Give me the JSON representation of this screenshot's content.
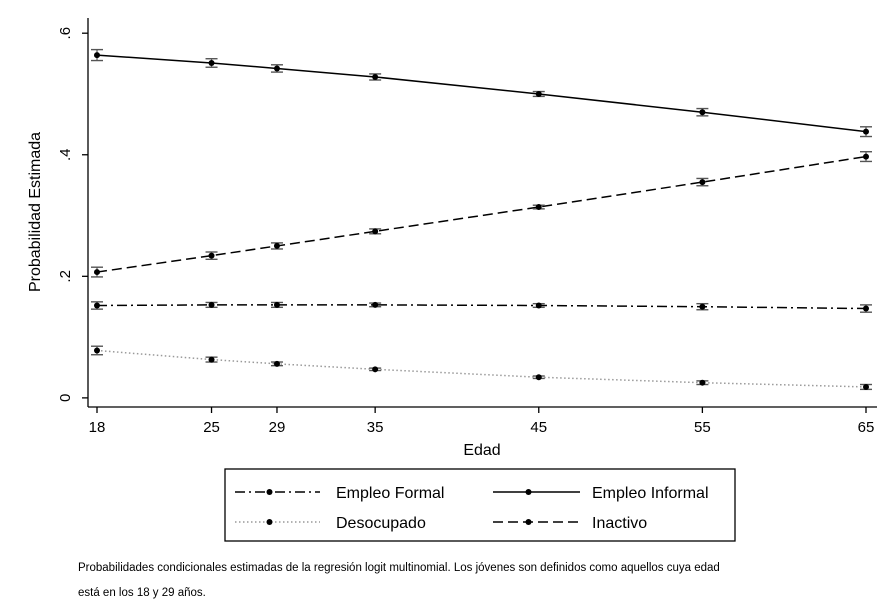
{
  "chart_data": {
    "type": "line",
    "xlabel": "Edad",
    "ylabel": "Probabilidad Estimada",
    "x": [
      18,
      25,
      29,
      35,
      45,
      55,
      65
    ],
    "x_ticks": [
      "18",
      "25",
      "29",
      "35",
      "45",
      "55",
      "65"
    ],
    "y_ticks": [
      {
        "value": 0,
        "label": "0"
      },
      {
        "value": 0.2,
        "label": ".2"
      },
      {
        "value": 0.4,
        "label": ".4"
      },
      {
        "value": 0.6,
        "label": ".6"
      }
    ],
    "xlim": [
      18,
      65
    ],
    "ylim": [
      -0.015,
      0.625
    ],
    "grid": false,
    "error_bars": true,
    "legend_position": "bottom",
    "series": [
      {
        "name": "Empleo Formal",
        "line_style": "dash-dot",
        "color": "#000000",
        "values": [
          0.152,
          0.153,
          0.153,
          0.153,
          0.152,
          0.15,
          0.147
        ],
        "ci": [
          0.006,
          0.004,
          0.004,
          0.003,
          0.003,
          0.005,
          0.006
        ]
      },
      {
        "name": "Empleo Informal",
        "line_style": "solid",
        "color": "#000000",
        "values": [
          0.564,
          0.551,
          0.542,
          0.528,
          0.5,
          0.47,
          0.438
        ],
        "ci": [
          0.009,
          0.007,
          0.006,
          0.005,
          0.004,
          0.006,
          0.008
        ]
      },
      {
        "name": "Desocupado",
        "line_style": "dotted",
        "color": "#999999",
        "values": [
          0.078,
          0.063,
          0.056,
          0.047,
          0.034,
          0.025,
          0.018
        ],
        "ci": [
          0.007,
          0.004,
          0.003,
          0.002,
          0.002,
          0.003,
          0.004
        ]
      },
      {
        "name": "Inactivo",
        "line_style": "dashed",
        "color": "#000000",
        "values": [
          0.207,
          0.234,
          0.25,
          0.274,
          0.314,
          0.355,
          0.397
        ],
        "ci": [
          0.008,
          0.006,
          0.005,
          0.004,
          0.003,
          0.006,
          0.008
        ]
      }
    ]
  },
  "caption": {
    "line1": "Probabilidades condicionales estimadas de la regresión logit multinomial. Los jóvenes son definidos como aquellos cuya edad",
    "line2": "está en los 18 y 29 años."
  }
}
